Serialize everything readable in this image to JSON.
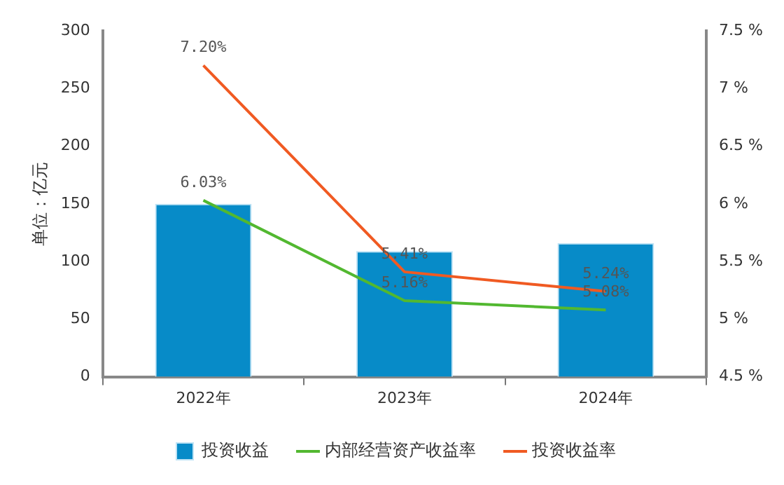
{
  "chart_data": {
    "type": "bar",
    "categories": [
      "2022年",
      "2023年",
      "2024年"
    ],
    "ylabel": "单位：亿元",
    "series": [
      {
        "name": "投资收益",
        "color": "#078bc8",
        "values": [
          150,
          109,
          116
        ]
      },
      {
        "name": "内部经营资产收益率",
        "type": "line",
        "axis": "y2",
        "color": "#52b830",
        "values": [
          6.03,
          5.16,
          5.08
        ],
        "value_labels": [
          "6.03%",
          "5.16%",
          "5.08%"
        ]
      },
      {
        "name": "投资收益率",
        "type": "line",
        "axis": "y2",
        "color": "#f05a22",
        "values": [
          7.2,
          5.41,
          5.24
        ],
        "value_labels": [
          "7.20%",
          "5.41%",
          "5.24%"
        ]
      }
    ],
    "ylim": [
      0,
      300
    ],
    "yticks": [
      0,
      50,
      100,
      150,
      200,
      250,
      300
    ],
    "y2lim": [
      4.5,
      7.5
    ],
    "y2ticks": [
      {
        "value": 4.5,
        "label": "4.5 %"
      },
      {
        "value": 5,
        "label": "5 %"
      },
      {
        "value": 5.5,
        "label": "5.5 %"
      },
      {
        "value": 6,
        "label": "6 %"
      },
      {
        "value": 6.5,
        "label": "6.5 %"
      },
      {
        "value": 7,
        "label": "7 %"
      },
      {
        "value": 7.5,
        "label": "7.5 %"
      }
    ],
    "grid": false,
    "legend": "bottom",
    "marker": "none",
    "line_style": "solid"
  }
}
